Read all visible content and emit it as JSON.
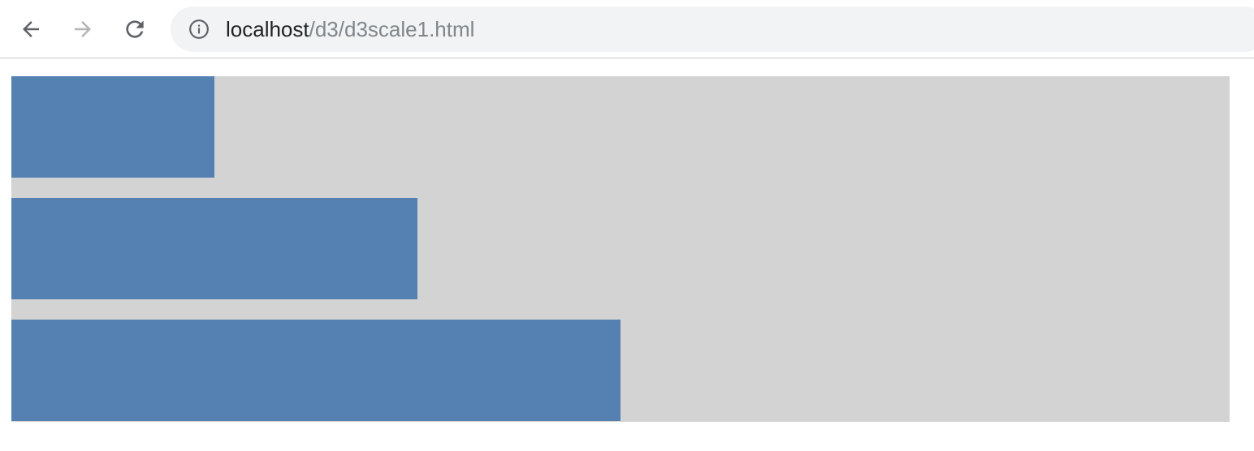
{
  "browser": {
    "back_icon": "arrow-left-icon",
    "forward_icon": "arrow-right-icon",
    "reload_icon": "reload-icon",
    "info_icon": "info-icon",
    "url_host": "localhost",
    "url_path": "/d3/d3scale1.html"
  },
  "colors": {
    "background": "#d3d3d3",
    "bar": "#5481b2"
  },
  "chart_data": {
    "type": "bar",
    "orientation": "horizontal",
    "values": [
      1,
      2,
      3
    ],
    "xlim": [
      0,
      6
    ]
  }
}
